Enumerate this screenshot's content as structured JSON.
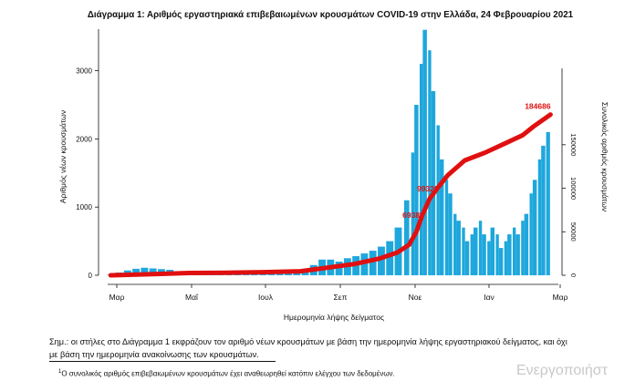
{
  "chart_data": {
    "type": "bar",
    "title": "Διάγραμμα 1: Αριθμός εργαστηριακά επιβεβαιωμένων κρουσμάτων COVID-19 στην Ελλάδα, 24 Φεβρουαρίου 2021",
    "xlabel": "Ημερομηνία λήψης δείγματος",
    "ylabel": "Αριθμός νέων κρουσμάτων",
    "y2label": "Συνολικός αριθμός κρουσμάτων",
    "x_ticks": [
      "Μαρ",
      "Μαΐ",
      "Ιουλ",
      "Σεπ",
      "Νοε",
      "Ιαν",
      "Μαρ"
    ],
    "y_ticks": [
      0,
      1000,
      2000,
      3000
    ],
    "y2_ticks": [
      0,
      50000,
      100000,
      150000
    ],
    "ylim": [
      0,
      3800
    ],
    "y2lim": [
      0,
      185000
    ],
    "series": [
      {
        "type": "bar",
        "axis": "left",
        "color": "#1ea7dc",
        "x": [
          "2020-02-26",
          "2020-03-04",
          "2020-03-11",
          "2020-03-18",
          "2020-03-25",
          "2020-04-01",
          "2020-04-08",
          "2020-04-15",
          "2020-04-22",
          "2020-04-29",
          "2020-05-06",
          "2020-05-13",
          "2020-05-20",
          "2020-05-27",
          "2020-06-03",
          "2020-06-10",
          "2020-06-17",
          "2020-06-24",
          "2020-07-01",
          "2020-07-08",
          "2020-07-15",
          "2020-07-22",
          "2020-07-29",
          "2020-08-05",
          "2020-08-12",
          "2020-08-19",
          "2020-08-26",
          "2020-09-02",
          "2020-09-09",
          "2020-09-16",
          "2020-09-23",
          "2020-09-30",
          "2020-10-07",
          "2020-10-14",
          "2020-10-21",
          "2020-10-28",
          "2020-11-02",
          "2020-11-05",
          "2020-11-09",
          "2020-11-12",
          "2020-11-16",
          "2020-11-19",
          "2020-11-23",
          "2020-11-26",
          "2020-11-30",
          "2020-12-03",
          "2020-12-07",
          "2020-12-10",
          "2020-12-14",
          "2020-12-17",
          "2020-12-21",
          "2020-12-24",
          "2020-12-28",
          "2020-12-31",
          "2021-01-04",
          "2021-01-07",
          "2021-01-11",
          "2021-01-14",
          "2021-01-18",
          "2021-01-21",
          "2021-01-25",
          "2021-01-28",
          "2021-02-01",
          "2021-02-04",
          "2021-02-08",
          "2021-02-11",
          "2021-02-15",
          "2021-02-18",
          "2021-02-22"
        ],
        "values": [
          10,
          40,
          70,
          95,
          110,
          100,
          90,
          80,
          60,
          40,
          30,
          20,
          15,
          15,
          20,
          20,
          30,
          30,
          40,
          40,
          50,
          50,
          60,
          90,
          150,
          230,
          230,
          200,
          250,
          280,
          320,
          360,
          420,
          500,
          700,
          1100,
          1800,
          2500,
          3100,
          3600,
          3300,
          2700,
          2200,
          1700,
          1400,
          1200,
          900,
          800,
          700,
          500,
          600,
          700,
          800,
          600,
          500,
          700,
          600,
          400,
          500,
          600,
          700,
          600,
          800,
          900,
          1200,
          1400,
          1700,
          1900,
          2100
        ]
      },
      {
        "type": "line",
        "axis": "right",
        "color": "#e01010",
        "x": [
          "2020-02-26",
          "2020-04-01",
          "2020-05-01",
          "2020-06-01",
          "2020-07-01",
          "2020-08-01",
          "2020-08-25",
          "2020-09-15",
          "2020-10-05",
          "2020-10-20",
          "2020-10-30",
          "2020-11-05",
          "2020-11-10",
          "2020-11-16",
          "2020-11-22",
          "2020-12-01",
          "2020-12-15",
          "2021-01-01",
          "2021-01-15",
          "2021-02-01",
          "2021-02-10",
          "2021-02-24"
        ],
        "values": [
          0,
          1300,
          2600,
          2900,
          3500,
          4600,
          9000,
          13000,
          19000,
          26000,
          35000,
          50000,
          69389,
          88000,
          99322,
          115000,
          132000,
          141000,
          150000,
          161000,
          171000,
          184686
        ]
      }
    ],
    "annotations": [
      {
        "text": "184686",
        "x": "2021-02-24",
        "value": 184686,
        "color": "#e01010"
      },
      {
        "text": "99322",
        "x": "2020-11-22",
        "value": 99322,
        "color": "#e01010"
      },
      {
        "text": "69389",
        "x": "2020-11-10",
        "value": 69389,
        "color": "#e01010"
      }
    ]
  },
  "notes": {
    "line1": "Σημ.: οι στήλες στο Διάγραμμα 1 εκφράζουν τον αριθμό νέων κρουσμάτων με βάση την ημερομηνία λήψης εργαστηριακού δείγματος, και όχι",
    "line2": "με βάση την ημερομηνία ανακοίνωσης των κρουσμάτων.",
    "footnote_mark": "1",
    "footnote": "Ο συνολικός αριθμός επιβεβαιωμένων κρουσμάτων έχει αναθεωρηθεί κατόπιν ελέγχου των δεδομένων."
  },
  "watermark": "Ενεργοποιήστ"
}
